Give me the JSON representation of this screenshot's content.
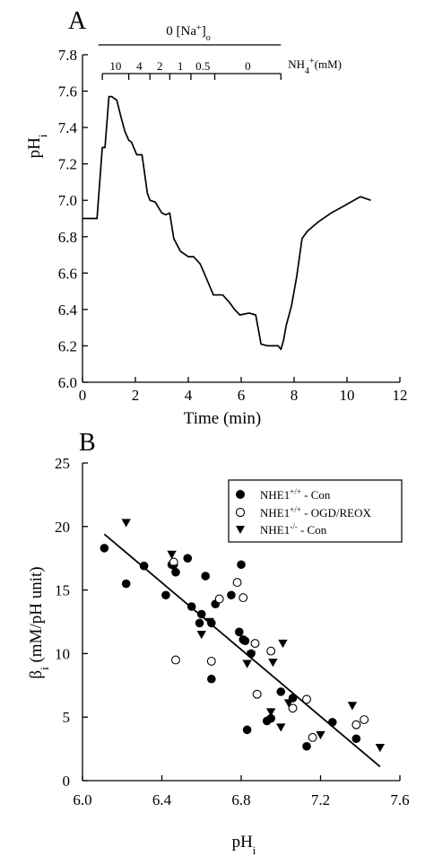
{
  "chart_data": [
    {
      "panel": "A",
      "type": "line",
      "xlabel": "Time (min)",
      "ylabel": "pH",
      "ylabel_sub": "i",
      "xlim": [
        0,
        12
      ],
      "ylim": [
        6.0,
        7.8
      ],
      "x_ticks": [
        "0",
        "2",
        "4",
        "6",
        "8",
        "10",
        "12"
      ],
      "y_ticks": [
        "6.0",
        "6.2",
        "6.4",
        "6.6",
        "6.8",
        "7.0",
        "7.2",
        "7.4",
        "7.6",
        "7.8"
      ],
      "grid": false,
      "na_label": "0 [Na",
      "na_label_sup": "+",
      "na_label_end": "]",
      "na_label_sub": "o",
      "na_bar": [
        0.6,
        7.5
      ],
      "nh4_label": "NH",
      "nh4_label_sub": "4",
      "nh4_label_sup": "+",
      "nh4_label_unit": "(mM)",
      "nh4_segments": [
        {
          "label": "10",
          "start": 0.75,
          "end": 1.75
        },
        {
          "label": "4",
          "start": 1.75,
          "end": 2.55
        },
        {
          "label": "2",
          "start": 2.55,
          "end": 3.3
        },
        {
          "label": "1",
          "start": 3.3,
          "end": 4.1
        },
        {
          "label": "0.5",
          "start": 4.1,
          "end": 5.0
        },
        {
          "label": "0",
          "start": 5.0,
          "end": 7.5
        }
      ],
      "series": [
        {
          "x": [
            0.0,
            0.55,
            0.75,
            0.85,
            1.0,
            1.1,
            1.3,
            1.45,
            1.6,
            1.75,
            1.85,
            2.05,
            2.25,
            2.45,
            2.55,
            2.75,
            3.0,
            3.15,
            3.3,
            3.45,
            3.7,
            4.0,
            4.2,
            4.45,
            4.6,
            4.95,
            5.1,
            5.3,
            5.55,
            5.75,
            5.95,
            6.3,
            6.55,
            6.75,
            7.0,
            7.25,
            7.4,
            7.5,
            7.6,
            7.7,
            7.9,
            8.1,
            8.3,
            8.5,
            8.9,
            9.4,
            9.9,
            10.5,
            10.9
          ],
          "y": [
            6.9,
            6.9,
            7.29,
            7.29,
            7.57,
            7.57,
            7.55,
            7.46,
            7.38,
            7.33,
            7.32,
            7.25,
            7.25,
            7.04,
            7.0,
            6.99,
            6.93,
            6.92,
            6.93,
            6.79,
            6.72,
            6.69,
            6.69,
            6.65,
            6.6,
            6.48,
            6.48,
            6.48,
            6.44,
            6.4,
            6.37,
            6.38,
            6.37,
            6.21,
            6.2,
            6.2,
            6.2,
            6.18,
            6.23,
            6.31,
            6.42,
            6.58,
            6.79,
            6.83,
            6.88,
            6.93,
            6.97,
            7.02,
            7.0
          ]
        }
      ]
    },
    {
      "panel": "B",
      "type": "scatter",
      "xlabel": "pH",
      "xlabel_sub": "i",
      "ylabel": "β",
      "ylabel_sub": "i",
      "ylabel_rest": " (mM/pH unit)",
      "xlim": [
        6.0,
        7.6
      ],
      "ylim": [
        0,
        25
      ],
      "x_ticks": [
        "6.0",
        "6.4",
        "6.8",
        "7.2",
        "7.6"
      ],
      "y_ticks": [
        "0",
        "5",
        "10",
        "15",
        "20",
        "25"
      ],
      "grid": false,
      "legend_position": "top-right",
      "series": [
        {
          "name": "NHE1",
          "name_sup": "+/+",
          "name_rest": " - Con",
          "marker": "filled-circle",
          "x": [
            6.11,
            6.31,
            6.22,
            6.42,
            6.45,
            6.47,
            6.53,
            6.55,
            6.6,
            6.62,
            6.65,
            6.67,
            6.75,
            6.79,
            6.8,
            6.81,
            6.82,
            6.85,
            6.83,
            6.93,
            6.95,
            7.0,
            7.06,
            7.13,
            7.26,
            7.38,
            6.65,
            6.59
          ],
          "y": [
            18.3,
            16.9,
            15.5,
            14.6,
            17.0,
            16.4,
            17.5,
            13.7,
            13.1,
            16.1,
            12.4,
            13.9,
            14.6,
            11.7,
            17.0,
            11.1,
            11.0,
            10.0,
            4.0,
            4.7,
            4.9,
            7.0,
            6.5,
            2.7,
            4.6,
            3.3,
            8.0,
            12.4
          ]
        },
        {
          "name": "NHE1",
          "name_sup": "+/+",
          "name_rest": " - OGD/REOX",
          "marker": "open-circle",
          "x": [
            6.46,
            6.47,
            6.65,
            6.69,
            6.78,
            6.81,
            6.87,
            6.88,
            6.95,
            7.06,
            7.13,
            7.16,
            7.38,
            7.42
          ],
          "y": [
            17.2,
            9.5,
            9.4,
            14.3,
            15.6,
            14.4,
            10.8,
            6.8,
            10.2,
            5.7,
            6.4,
            3.4,
            4.4,
            4.8
          ]
        },
        {
          "name": "NHE1",
          "name_sup": "-/-",
          "name_rest": " - Con",
          "marker": "filled-triangle-down",
          "x": [
            6.22,
            6.45,
            6.46,
            6.6,
            6.64,
            6.83,
            6.85,
            6.95,
            6.96,
            7.0,
            7.01,
            7.04,
            7.2,
            7.36,
            7.5
          ],
          "y": [
            20.3,
            17.8,
            16.7,
            11.5,
            12.5,
            9.2,
            9.9,
            5.4,
            9.3,
            4.2,
            10.8,
            6.1,
            3.6,
            5.9,
            2.6
          ]
        }
      ],
      "fit_line": {
        "x": [
          6.11,
          7.5
        ],
        "y": [
          19.4,
          1.1
        ]
      }
    }
  ]
}
